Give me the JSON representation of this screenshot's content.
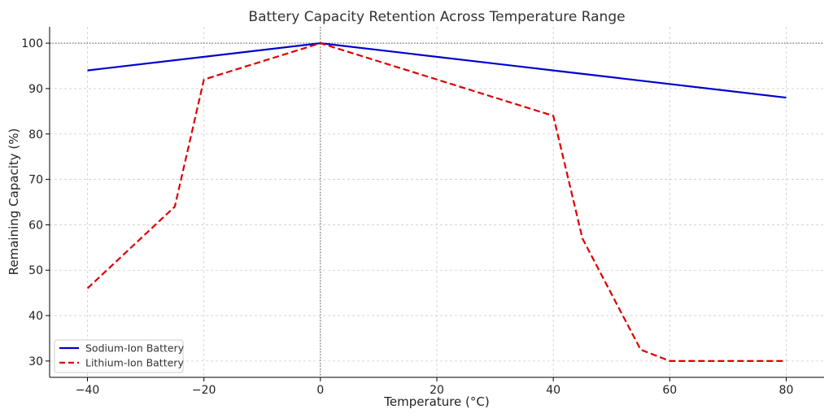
{
  "chart_data": {
    "type": "line",
    "title": "Battery Capacity Retention Across Temperature Range",
    "xlabel": "Temperature (°C)",
    "ylabel": "Remaining Capacity (%)",
    "xlim": [
      -46.5,
      86.5
    ],
    "ylim": [
      26.4,
      103.6
    ],
    "x_ticks": [
      -40,
      -20,
      0,
      20,
      40,
      60,
      80
    ],
    "x_tick_labels": [
      "−40",
      "−20",
      "0",
      "20",
      "40",
      "60",
      "80"
    ],
    "y_ticks": [
      30,
      40,
      50,
      60,
      70,
      80,
      90,
      100
    ],
    "y_tick_labels": [
      "30",
      "40",
      "50",
      "60",
      "70",
      "80",
      "90",
      "100"
    ],
    "grid": true,
    "reference_lines": {
      "y": 100,
      "x": 0
    },
    "legend_position": "lower-left",
    "series": [
      {
        "name": "Sodium-Ion Battery",
        "color": "#0000cc",
        "dash": "solid",
        "x": [
          -40,
          0,
          40,
          80
        ],
        "y": [
          94,
          100,
          94,
          88
        ]
      },
      {
        "name": "Lithium-Ion Battery",
        "color": "#dd0000",
        "dash": "dashed",
        "x": [
          -40,
          -25,
          -20,
          0,
          20,
          40,
          45,
          55,
          60,
          80
        ],
        "y": [
          46,
          64,
          92,
          100,
          92,
          84,
          57,
          32.5,
          30,
          30
        ]
      }
    ]
  }
}
